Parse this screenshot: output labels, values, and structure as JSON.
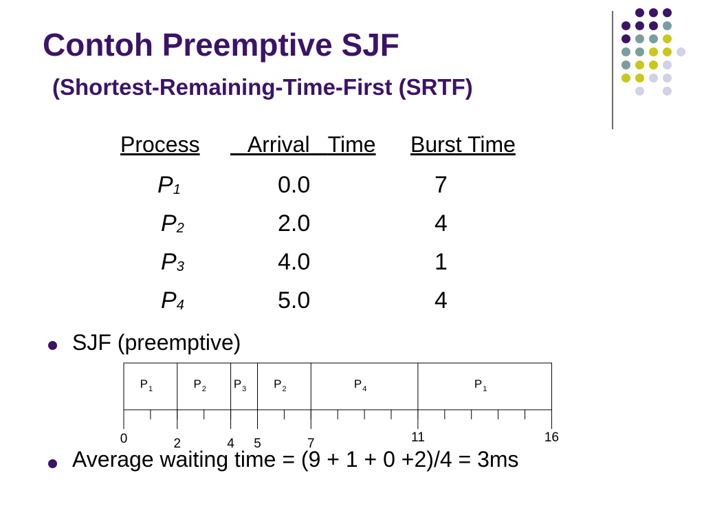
{
  "title": "Contoh Preemptive SJF",
  "subtitle": "(Shortest-Remaining-Time-First (SRTF)",
  "table": {
    "headers": [
      "Process",
      "Arrival",
      "Time",
      "Burst Time"
    ],
    "rows": [
      {
        "name": "P",
        "sub": "1",
        "arrival": "0.0",
        "burst": "7"
      },
      {
        "name": "P",
        "sub": "2",
        "arrival": "2.0",
        "burst": "4"
      },
      {
        "name": "P",
        "sub": "3",
        "arrival": "4.0",
        "burst": "1"
      },
      {
        "name": "P",
        "sub": "4",
        "arrival": "5.0",
        "burst": "4"
      }
    ]
  },
  "bullets": [
    "SJF (preemptive)",
    "Average waiting time = (9 + 1 + 0 +2)/4 = 3ms"
  ],
  "gantt": {
    "segments": [
      {
        "label": "P",
        "sub": "1",
        "start": 0,
        "end": 2
      },
      {
        "label": "P",
        "sub": "2",
        "start": 2,
        "end": 4
      },
      {
        "label": "P",
        "sub": "3",
        "start": 4,
        "end": 5
      },
      {
        "label": "P",
        "sub": "2",
        "start": 5,
        "end": 7
      },
      {
        "label": "P",
        "sub": "4",
        "start": 7,
        "end": 11
      },
      {
        "label": "P",
        "sub": "1",
        "start": 11,
        "end": 16
      }
    ],
    "tick_labels": [
      "0",
      "2",
      "4",
      "5",
      "7",
      "11",
      "16"
    ]
  },
  "colors": {
    "title": "#3b1466",
    "purple": "#3b1466",
    "teal": "#7a9e9f",
    "yellow": "#c8c820",
    "lavender": "#d2d2e6"
  }
}
